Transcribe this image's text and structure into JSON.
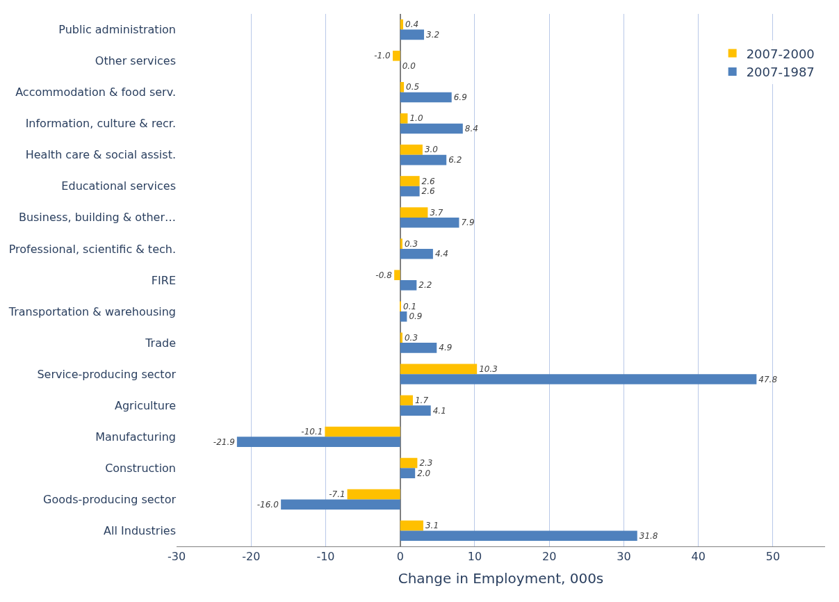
{
  "chart_data": {
    "type": "bar",
    "orientation": "horizontal",
    "xlabel": "Change in Employment, 000s",
    "categories": [
      "Public administration",
      "Other services",
      "Accommodation & food serv.",
      "Information, culture & recr.",
      "Health care & social assist.",
      "Educational services",
      "Business, building & other…",
      "Professional, scientific & tech.",
      "FIRE",
      "Transportation & warehousing",
      "Trade",
      "Service-producing sector",
      "Agriculture",
      "Manufacturing",
      "Construction",
      "Goods-producing sector",
      "All Industries"
    ],
    "series": [
      {
        "name": "2007-2000",
        "color": "#ffc000",
        "values": [
          0.4,
          -1.0,
          0.5,
          1.0,
          3.0,
          2.6,
          3.7,
          0.3,
          -0.8,
          0.1,
          0.3,
          10.3,
          1.7,
          -10.1,
          2.3,
          -7.1,
          3.1
        ],
        "value_labels": [
          "0.4",
          "-1.0",
          "0.5",
          "1.0",
          "3.0",
          "2.6",
          "3.7",
          "0.3",
          "-0.8",
          "0.1",
          "0.3",
          "10.3",
          "1.7",
          "-10.1",
          "2.3",
          "-7.1",
          "3.1"
        ]
      },
      {
        "name": "2007-1987",
        "color": "#4f81bd",
        "values": [
          3.2,
          0.0,
          6.9,
          8.4,
          6.2,
          2.6,
          7.9,
          4.4,
          2.2,
          0.9,
          4.9,
          47.8,
          4.1,
          -21.9,
          2.0,
          -16.0,
          31.8
        ],
        "value_labels": [
          "3.2",
          "0.0",
          "6.9",
          "8.4",
          "6.2",
          "2.6",
          "7.9",
          "4.4",
          "2.2",
          "0.9",
          "4.9",
          "47.8",
          "4.1",
          "-21.9",
          "2.0",
          "-16.0",
          "31.8"
        ]
      }
    ],
    "xlim": [
      -30,
      57
    ],
    "xticks": [
      -30,
      -20,
      -10,
      0,
      10,
      20,
      30,
      40,
      50
    ],
    "grid": "x",
    "legend": "top right"
  }
}
